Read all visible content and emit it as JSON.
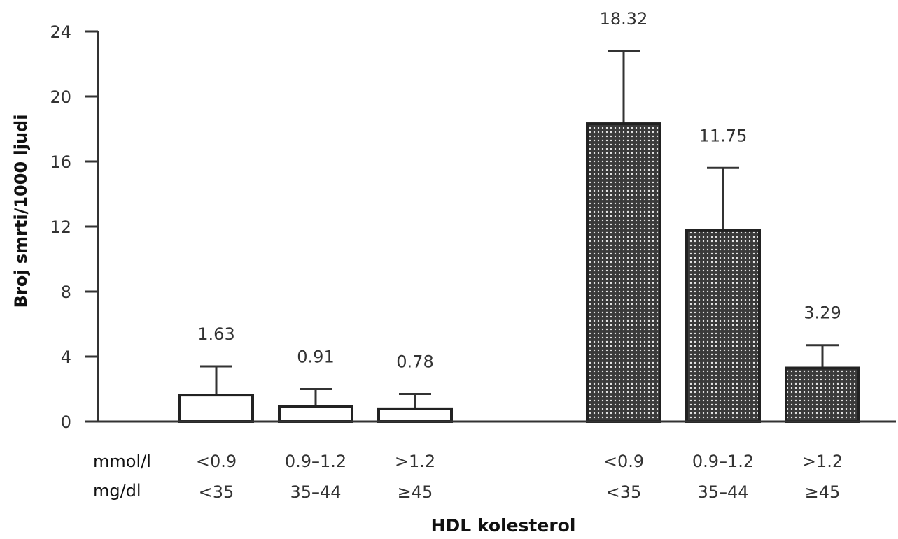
{
  "chart_data": {
    "type": "bar",
    "title": "",
    "xlabel": "HDL kolesterol",
    "ylabel": "Broj smrti/1000 ljudi",
    "ylim": [
      0,
      24
    ],
    "yticks": [
      "0",
      "4",
      "8",
      "12",
      "16",
      "20",
      "24"
    ],
    "row_labels": {
      "mmol": "mmol/l",
      "mgdl": "mg/dl"
    },
    "groups": [
      {
        "fill": "open",
        "bars": [
          {
            "mmol": "<0.9",
            "mgdl": "<35",
            "value": 1.63,
            "error_top": 3.4,
            "label": "1.63"
          },
          {
            "mmol": "0.9–1.2",
            "mgdl": "35–44",
            "value": 0.91,
            "error_top": 2.0,
            "label": "0.91"
          },
          {
            "mmol": ">1.2",
            "mgdl": "≥45",
            "value": 0.78,
            "error_top": 1.7,
            "label": "0.78"
          }
        ]
      },
      {
        "fill": "dotted-dark",
        "bars": [
          {
            "mmol": "<0.9",
            "mgdl": "<35",
            "value": 18.32,
            "error_top": 22.8,
            "label": "18.32"
          },
          {
            "mmol": "0.9–1.2",
            "mgdl": "35–44",
            "value": 11.75,
            "error_top": 15.6,
            "label": "11.75"
          },
          {
            "mmol": ">1.2",
            "mgdl": "≥45",
            "value": 3.29,
            "error_top": 4.7,
            "label": "3.29"
          }
        ]
      }
    ],
    "colors": {
      "axis": "#333333",
      "dark_fill": "#3a3a3a",
      "dots": "#e8e8e8"
    }
  }
}
